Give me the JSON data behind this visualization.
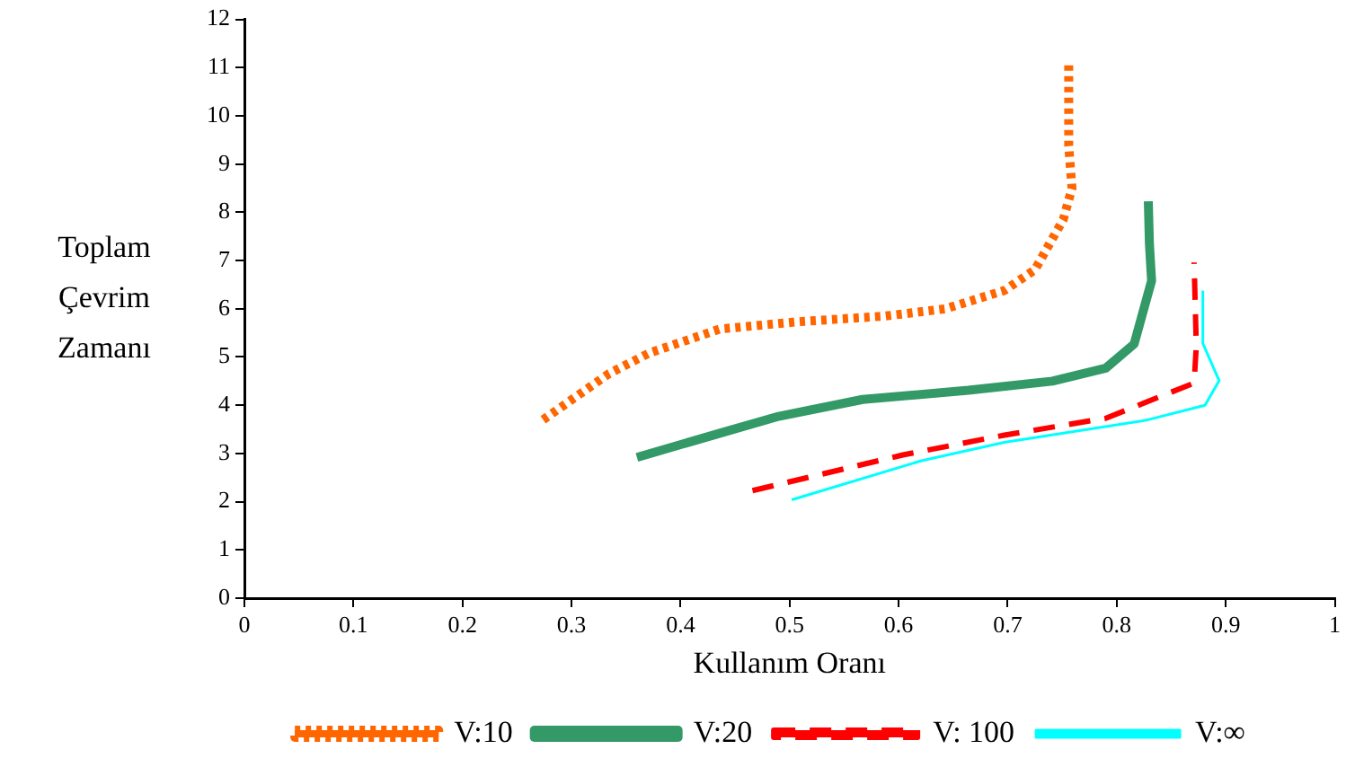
{
  "chart_data": {
    "type": "line",
    "xlabel": "Kullanım Oranı",
    "ylabel": "Toplam Çevrim Zamanı",
    "xlim": [
      0,
      1
    ],
    "xticks": [
      0,
      0.1,
      0.2,
      0.3,
      0.4,
      0.5,
      0.6,
      0.7,
      0.8,
      0.9,
      1
    ],
    "ylim": [
      0,
      12
    ],
    "yticks": [
      0,
      1,
      2,
      3,
      4,
      5,
      6,
      7,
      8,
      9,
      10,
      11,
      12
    ],
    "grid": false,
    "legend": "bottom",
    "marker": "none",
    "series": [
      {
        "name": "V:10",
        "color": "#ff6600",
        "line_style": "dotted",
        "x": [
          0.274,
          0.334,
          0.371,
          0.436,
          0.507,
          0.588,
          0.643,
          0.697,
          0.725,
          0.751,
          0.759,
          0.756,
          0.756
        ],
        "values": [
          3.7,
          4.65,
          5.08,
          5.58,
          5.73,
          5.85,
          6.0,
          6.38,
          6.81,
          7.85,
          8.5,
          9.38,
          11.1
        ]
      },
      {
        "name": "V:20",
        "color": "#339966",
        "line_style": "solid",
        "x": [
          0.36,
          0.436,
          0.49,
          0.567,
          0.664,
          0.741,
          0.79,
          0.816,
          0.832,
          0.83,
          0.829
        ],
        "values": [
          2.92,
          3.42,
          3.77,
          4.12,
          4.31,
          4.5,
          4.77,
          5.27,
          6.58,
          7.35,
          8.23
        ]
      },
      {
        "name": "V: 100",
        "color": "#ff0000",
        "line_style": "dashed",
        "x": [
          0.466,
          0.604,
          0.697,
          0.79,
          0.871,
          0.873,
          0.871
        ],
        "values": [
          2.23,
          2.97,
          3.38,
          3.73,
          4.46,
          5.23,
          6.96
        ]
      },
      {
        "name": "V:∞",
        "color": "#00ffff",
        "line_style": "solid",
        "x": [
          0.502,
          0.621,
          0.697,
          0.827,
          0.881,
          0.894,
          0.879,
          0.879
        ],
        "values": [
          2.04,
          2.85,
          3.23,
          3.69,
          4.0,
          4.51,
          5.28,
          6.38
        ]
      }
    ]
  }
}
